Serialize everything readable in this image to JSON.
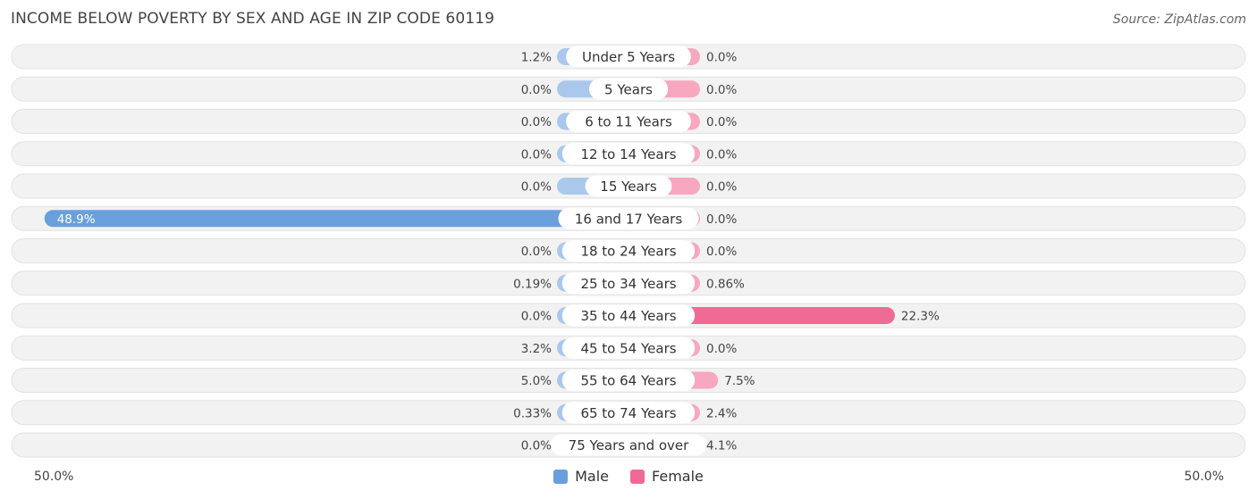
{
  "title": "INCOME BELOW POVERTY BY SEX AND AGE IN ZIP CODE 60119",
  "source": "Source: ZipAtlas.com",
  "axis": {
    "left_label": "50.0%",
    "right_label": "50.0%"
  },
  "legend": {
    "male_label": "Male",
    "female_label": "Female"
  },
  "colors": {
    "male_bar": "#a9c8ec",
    "male_bar_strong": "#6a9fdd",
    "female_bar": "#f7a7c0",
    "female_bar_strong": "#f06b93",
    "row_bg": "#f2f2f2",
    "row_border": "#e2e2e2"
  },
  "chart_data": {
    "type": "bar",
    "orientation": "horizontal-diverging",
    "title": "INCOME BELOW POVERTY BY SEX AND AGE IN ZIP CODE 60119",
    "xlim": [
      -50,
      50
    ],
    "categories": [
      "Under 5 Years",
      "5 Years",
      "6 to 11 Years",
      "12 to 14 Years",
      "15 Years",
      "16 and 17 Years",
      "18 to 24 Years",
      "25 to 34 Years",
      "35 to 44 Years",
      "45 to 54 Years",
      "55 to 64 Years",
      "65 to 74 Years",
      "75 Years and over"
    ],
    "series": [
      {
        "name": "Male",
        "values": [
          1.2,
          0.0,
          0.0,
          0.0,
          0.0,
          48.9,
          0.0,
          0.19,
          0.0,
          3.2,
          5.0,
          0.33,
          0.0
        ],
        "labels": [
          "1.2%",
          "0.0%",
          "0.0%",
          "0.0%",
          "0.0%",
          "48.9%",
          "0.0%",
          "0.19%",
          "0.0%",
          "3.2%",
          "5.0%",
          "0.33%",
          "0.0%"
        ]
      },
      {
        "name": "Female",
        "values": [
          0.0,
          0.0,
          0.0,
          0.0,
          0.0,
          0.0,
          0.0,
          0.86,
          22.3,
          0.0,
          7.5,
          2.4,
          4.1
        ],
        "labels": [
          "0.0%",
          "0.0%",
          "0.0%",
          "0.0%",
          "0.0%",
          "0.0%",
          "0.0%",
          "0.86%",
          "22.3%",
          "0.0%",
          "7.5%",
          "2.4%",
          "4.1%"
        ]
      }
    ],
    "legend_position": "bottom-center",
    "grid": false
  }
}
